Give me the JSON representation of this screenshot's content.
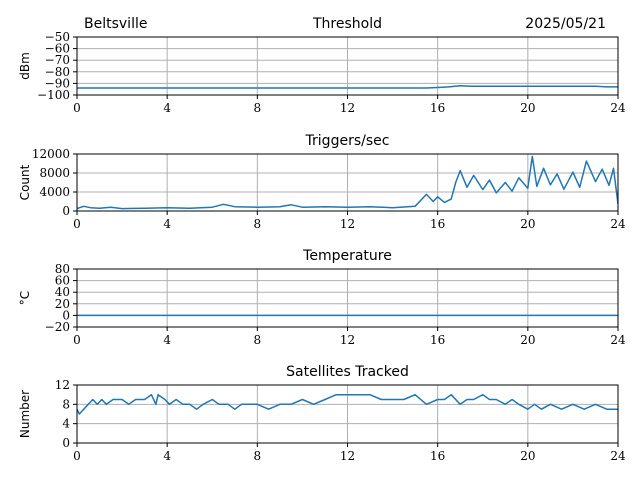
{
  "header": {
    "location": "Beltsville",
    "date": "2025/05/21"
  },
  "colors": {
    "series": "#1f77b4",
    "grid": "#b0b0b0"
  },
  "chart_data": [
    {
      "type": "line",
      "title": "Threshold",
      "ylabel": "dBm",
      "xlabel": "",
      "xlim": [
        0,
        24
      ],
      "ylim": [
        -100,
        -50
      ],
      "xticks": [
        "0",
        "4",
        "8",
        "12",
        "16",
        "20",
        "24"
      ],
      "yticks": [
        "−50",
        "−60",
        "−70",
        "−80",
        "−90",
        "−100"
      ],
      "grid": true,
      "series": [
        {
          "x": [
            0,
            2,
            4,
            6,
            8,
            10,
            12,
            14,
            15.5,
            16,
            16.5,
            17,
            17.5,
            18,
            19,
            20,
            21,
            22,
            23,
            23.5,
            24
          ],
          "y": [
            -94,
            -94,
            -94,
            -94,
            -94,
            -94,
            -94,
            -94,
            -94,
            -93.5,
            -93,
            -92,
            -92.5,
            -92.5,
            -92.5,
            -92.5,
            -92.5,
            -92.5,
            -92.5,
            -93,
            -93
          ]
        }
      ]
    },
    {
      "type": "line",
      "title": "Triggers/sec",
      "ylabel": "Count",
      "xlabel": "",
      "xlim": [
        0,
        24
      ],
      "ylim": [
        0,
        12000
      ],
      "xticks": [
        "0",
        "4",
        "8",
        "12",
        "16",
        "20",
        "24"
      ],
      "yticks": [
        "12000",
        "8000",
        "4000",
        "0"
      ],
      "grid": true,
      "series": [
        {
          "x": [
            0,
            0.3,
            0.6,
            1,
            1.5,
            2,
            3,
            4,
            5,
            6,
            6.5,
            7,
            8,
            9,
            9.5,
            10,
            11,
            12,
            13,
            14,
            15,
            15.5,
            15.8,
            16,
            16.3,
            16.6,
            16.8,
            17,
            17.3,
            17.6,
            18,
            18.3,
            18.6,
            19,
            19.3,
            19.6,
            20,
            20.2,
            20.4,
            20.7,
            21,
            21.3,
            21.6,
            22,
            22.3,
            22.6,
            23,
            23.3,
            23.6,
            23.8,
            24
          ],
          "y": [
            500,
            1000,
            700,
            600,
            800,
            500,
            600,
            700,
            600,
            800,
            1400,
            900,
            800,
            900,
            1300,
            800,
            900,
            800,
            900,
            700,
            1000,
            3500,
            2000,
            3000,
            1800,
            2500,
            6000,
            8500,
            5000,
            7500,
            4500,
            6500,
            3800,
            6000,
            4200,
            7000,
            4800,
            11500,
            5200,
            9000,
            5500,
            7800,
            4600,
            8200,
            5000,
            10500,
            6200,
            8800,
            5400,
            9000,
            1500
          ]
        }
      ]
    },
    {
      "type": "line",
      "title": "Temperature",
      "ylabel": "°C",
      "xlabel": "",
      "xlim": [
        0,
        24
      ],
      "ylim": [
        -20,
        80
      ],
      "xticks": [
        "0",
        "4",
        "8",
        "12",
        "16",
        "20",
        "24"
      ],
      "yticks": [
        "80",
        "60",
        "40",
        "20",
        "0",
        "−20"
      ],
      "grid": true,
      "series": [
        {
          "x": [
            0,
            24
          ],
          "y": [
            0,
            0
          ]
        }
      ]
    },
    {
      "type": "line",
      "title": "Satellites Tracked",
      "ylabel": "Number",
      "xlabel": "",
      "xlim": [
        0,
        24
      ],
      "ylim": [
        0,
        12
      ],
      "xticks": [
        "0",
        "4",
        "8",
        "12",
        "16",
        "20",
        "24"
      ],
      "yticks": [
        "12",
        "8",
        "4",
        "0"
      ],
      "grid": true,
      "series": [
        {
          "x": [
            0,
            0.1,
            0.3,
            0.5,
            0.7,
            0.9,
            1.1,
            1.3,
            1.6,
            2,
            2.3,
            2.6,
            3,
            3.3,
            3.5,
            3.6,
            3.9,
            4.1,
            4.4,
            4.7,
            5,
            5.3,
            5.6,
            6,
            6.3,
            6.7,
            7,
            7.3,
            7.6,
            8,
            8.5,
            9,
            9.5,
            10,
            10.5,
            11,
            11.5,
            12,
            12.5,
            13,
            13.5,
            14,
            14.5,
            15,
            15.5,
            16,
            16.3,
            16.6,
            17,
            17.3,
            17.6,
            18,
            18.3,
            18.6,
            19,
            19.3,
            19.6,
            20,
            20.3,
            20.6,
            21,
            21.5,
            22,
            22.5,
            23,
            23.5,
            24
          ],
          "y": [
            7,
            6,
            7,
            8,
            9,
            8,
            9,
            8,
            9,
            9,
            8,
            9,
            9,
            10,
            8,
            10,
            9,
            8,
            9,
            8,
            8,
            7,
            8,
            9,
            8,
            8,
            7,
            8,
            8,
            8,
            7,
            8,
            8,
            9,
            8,
            9,
            10,
            10,
            10,
            10,
            9,
            9,
            9,
            10,
            8,
            9,
            9,
            10,
            8,
            9,
            9,
            10,
            9,
            9,
            8,
            9,
            8,
            7,
            8,
            7,
            8,
            7,
            8,
            7,
            8,
            7,
            7
          ]
        }
      ]
    }
  ]
}
